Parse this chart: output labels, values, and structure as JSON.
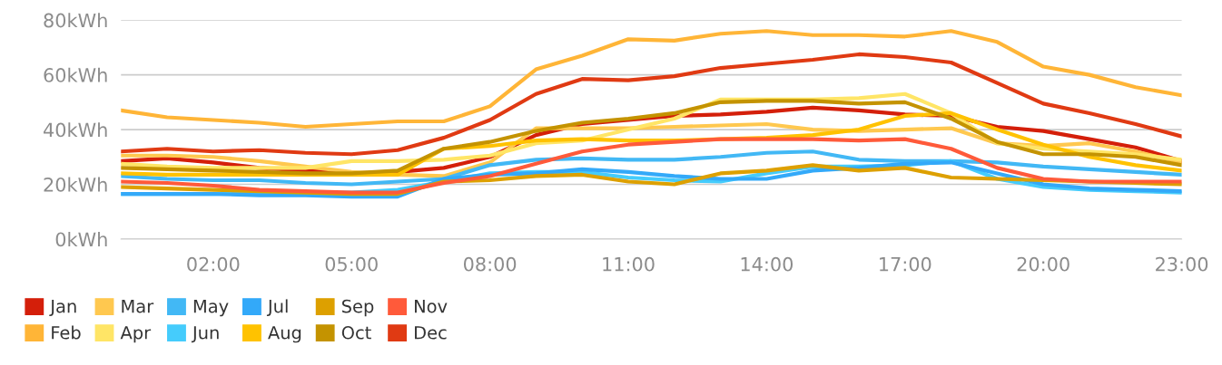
{
  "chart_data": {
    "type": "line",
    "x": [
      0,
      1,
      2,
      3,
      4,
      5,
      6,
      7,
      8,
      9,
      10,
      11,
      12,
      13,
      14,
      15,
      16,
      17,
      18,
      19,
      20,
      21,
      22,
      23
    ],
    "xlim": [
      0,
      23
    ],
    "xticks": [
      {
        "value": 2,
        "label": "02:00"
      },
      {
        "value": 5,
        "label": "05:00"
      },
      {
        "value": 8,
        "label": "08:00"
      },
      {
        "value": 11,
        "label": "11:00"
      },
      {
        "value": 14,
        "label": "14:00"
      },
      {
        "value": 17,
        "label": "17:00"
      },
      {
        "value": 20,
        "label": "20:00"
      },
      {
        "value": 23,
        "label": "23:00"
      }
    ],
    "ylim": [
      0,
      80
    ],
    "yticks": [
      {
        "value": 0,
        "label": "0kWh"
      },
      {
        "value": 20,
        "label": "20kWh"
      },
      {
        "value": 40,
        "label": "40kWh"
      },
      {
        "value": 60,
        "label": "60kWh"
      },
      {
        "value": 80,
        "label": "80kWh"
      }
    ],
    "grid": "y",
    "legend": "bottom left",
    "marker": "none",
    "line_style": "solid",
    "series": [
      {
        "name": "Jan",
        "color": "#d41f0a",
        "values": [
          28.5,
          29.5,
          28,
          26,
          25,
          24,
          24.5,
          26,
          30,
          38,
          42,
          43.5,
          45,
          45.5,
          46.5,
          48,
          47,
          45.5,
          45,
          41,
          39.5,
          36.5,
          33.5,
          28.5
        ]
      },
      {
        "name": "Feb",
        "color": "#ffb537",
        "values": [
          47,
          44.5,
          43.5,
          42.5,
          41,
          42,
          43,
          43,
          48.5,
          62,
          67,
          73,
          72.5,
          75,
          76,
          74.5,
          74.5,
          74,
          76,
          72,
          63,
          60,
          55.5,
          52.5
        ]
      },
      {
        "name": "Mar",
        "color": "#ffc84f",
        "values": [
          30.5,
          30.5,
          30,
          28.5,
          26.5,
          24.5,
          23.5,
          23,
          28,
          40.5,
          40.5,
          40.5,
          41,
          41.5,
          42,
          40,
          39.5,
          40,
          40.5,
          35,
          34,
          35,
          32,
          28
        ]
      },
      {
        "name": "Apr",
        "color": "#ffe566",
        "values": [
          27.5,
          26.5,
          26,
          26,
          26,
          28.5,
          28.5,
          29,
          30.5,
          35,
          36,
          40,
          44,
          51,
          51,
          51,
          51.5,
          53,
          46,
          35,
          33,
          32,
          31,
          29
        ]
      },
      {
        "name": "May",
        "color": "#42b8f5",
        "values": [
          23,
          22,
          21.5,
          21.5,
          20.5,
          20,
          21,
          22,
          27,
          29,
          29.5,
          29,
          29,
          30,
          31.5,
          32,
          29,
          28.5,
          28.5,
          28,
          26.5,
          25.5,
          24.5,
          23.5
        ]
      },
      {
        "name": "Jun",
        "color": "#45ccfc",
        "values": [
          16.5,
          16.5,
          16.5,
          17,
          17,
          17,
          18,
          21,
          24,
          24.5,
          24.5,
          22.5,
          21.5,
          21,
          24,
          26.5,
          26.5,
          27,
          28.5,
          22,
          19,
          18,
          17.5,
          17
        ]
      },
      {
        "name": "Jul",
        "color": "#33a9f9",
        "values": [
          16.5,
          16.5,
          16.5,
          16,
          16,
          15.5,
          15.5,
          22,
          23.5,
          24,
          25.5,
          24.5,
          23,
          22,
          22,
          25,
          26,
          27.5,
          28,
          24,
          20,
          18.5,
          18,
          17.5
        ]
      },
      {
        "name": "Aug",
        "color": "#ffc200",
        "values": [
          24,
          23.5,
          23.5,
          23.5,
          23.5,
          23.5,
          23.5,
          33,
          34,
          36,
          36.5,
          36,
          36,
          36.5,
          37,
          38,
          40,
          45,
          46,
          40,
          34.5,
          30,
          27,
          25
        ]
      },
      {
        "name": "Sep",
        "color": "#dda000",
        "values": [
          19,
          18.5,
          18,
          17.5,
          17,
          16.5,
          16.5,
          21,
          21.5,
          23,
          23.5,
          21,
          20,
          24,
          25,
          27,
          25,
          26,
          22.5,
          22,
          21.5,
          21,
          20.5,
          20
        ]
      },
      {
        "name": "Oct",
        "color": "#c49300",
        "values": [
          26,
          25.5,
          25,
          24.5,
          24,
          24,
          25,
          33,
          35.5,
          39.5,
          42.5,
          44,
          46,
          50,
          50.5,
          50.5,
          49.5,
          50,
          44,
          35.5,
          31,
          31,
          30,
          27
        ]
      },
      {
        "name": "Nov",
        "color": "#ff5a3a",
        "values": [
          21,
          20.5,
          19.5,
          18,
          17.5,
          17,
          17,
          20.5,
          23,
          27.5,
          32,
          34.5,
          35.5,
          36.5,
          36.5,
          36.5,
          36,
          36.5,
          33,
          26,
          22,
          21,
          21,
          21
        ]
      },
      {
        "name": "Dec",
        "color": "#e03a13",
        "values": [
          32,
          33,
          32,
          32.5,
          31.5,
          31,
          32.5,
          37,
          43.5,
          53,
          58.5,
          58,
          59.5,
          62.5,
          64,
          65.5,
          67.5,
          66.5,
          64.5,
          57,
          49.5,
          46,
          42,
          37.5
        ]
      }
    ]
  }
}
